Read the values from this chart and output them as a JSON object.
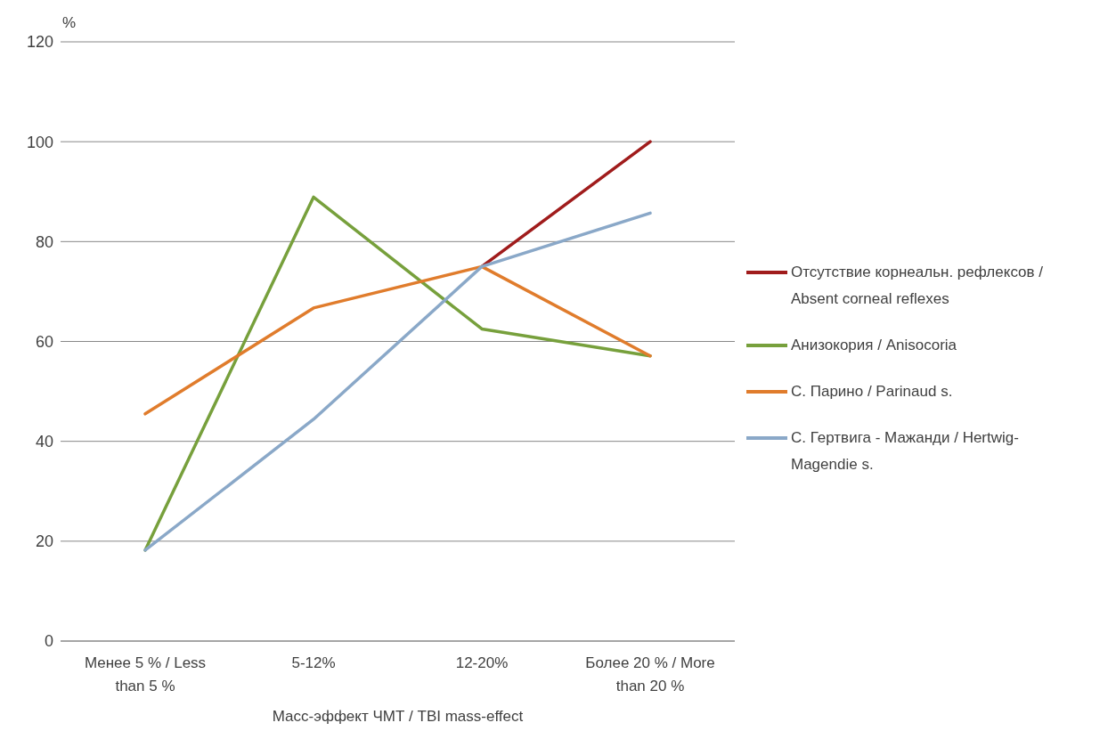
{
  "chart_data": {
    "type": "line",
    "xlabel": "Масс-эффект ЧМТ / TBI mass-effect",
    "ylabel": "%",
    "categories": [
      "Менее 5 % / Less than 5 %",
      "5-12%",
      "12-20%",
      "Более 20 % / More than 20 %"
    ],
    "series": [
      {
        "name": "Отсутствие корнеальн. рефлексов / Absent corneal reflexes",
        "color": "#a01c1c",
        "values": [
          null,
          null,
          75,
          100
        ]
      },
      {
        "name": "Анизокория / Anisocoria",
        "color": "#77a03c",
        "values": [
          18.2,
          88.9,
          62.5,
          57.1
        ]
      },
      {
        "name": "С. Парино / Parinaud s.",
        "color": "#e07c2c",
        "values": [
          45.5,
          66.7,
          75,
          57.1
        ]
      },
      {
        "name": "С. Гертвига - Мажанди / Hertwig-Magendie s.",
        "color": "#8aa8c8",
        "values": [
          18.2,
          44.4,
          75,
          85.7
        ]
      }
    ],
    "ylim": [
      0,
      120
    ],
    "yticks": [
      0,
      20,
      40,
      60,
      80,
      100,
      120
    ],
    "grid": "y",
    "legend": "right",
    "marker": "none",
    "line_style": "solid"
  }
}
